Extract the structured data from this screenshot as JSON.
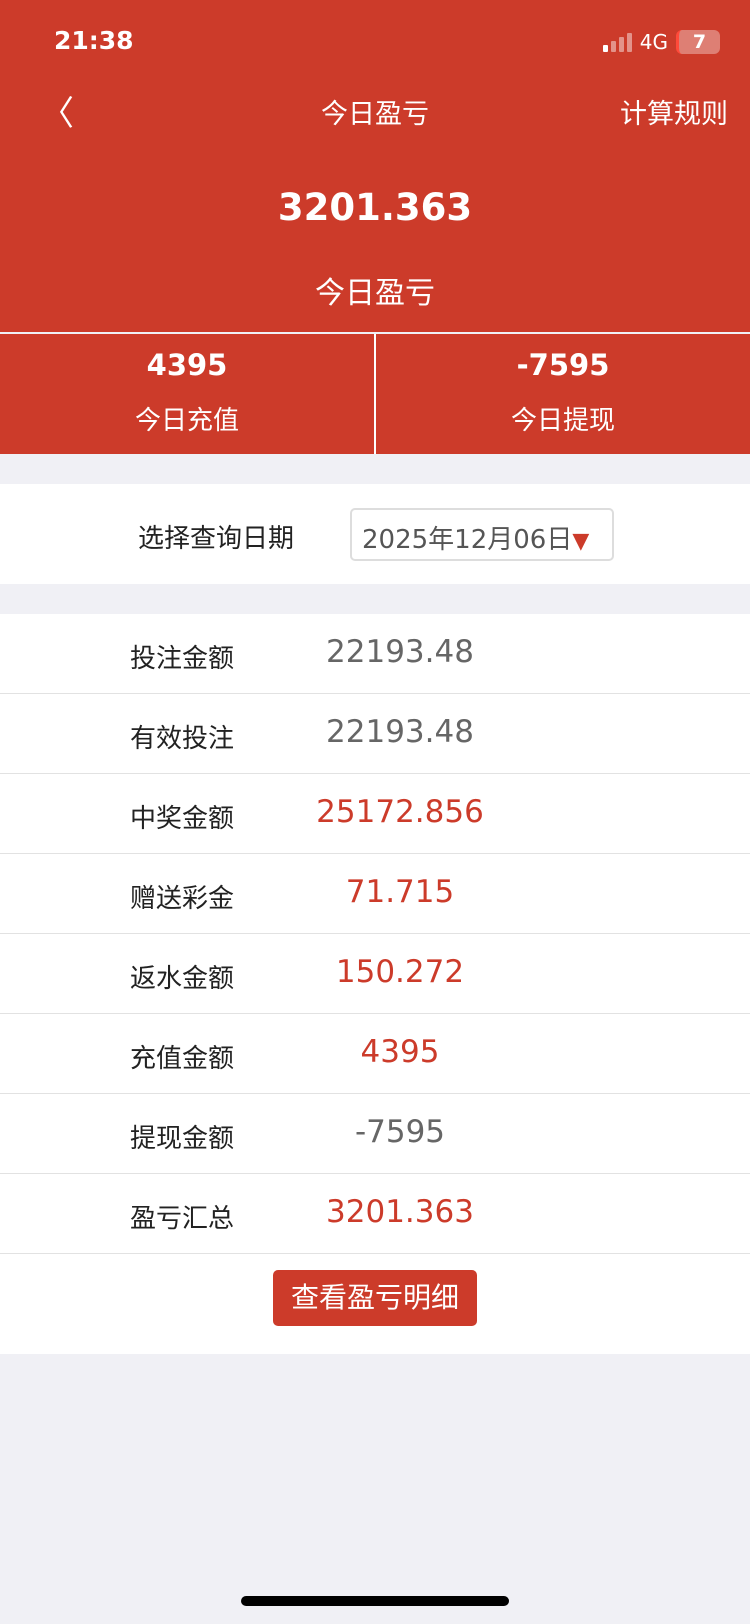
{
  "status_bar": {
    "time": "21:38",
    "network": "4G",
    "battery": "7"
  },
  "nav": {
    "back_icon": "chevron-left-icon",
    "title": "今日盈亏",
    "rules": "计算规则"
  },
  "summary": {
    "total": "3201.363",
    "total_label": "今日盈亏",
    "recharge": "4395",
    "recharge_label": "今日充值",
    "withdraw": "-7595",
    "withdraw_label": "今日提现"
  },
  "date": {
    "label": "选择查询日期",
    "value": "2025年12月06日"
  },
  "rows": [
    {
      "label": "投注金额",
      "value": "22193.48",
      "color": "gray"
    },
    {
      "label": "有效投注",
      "value": "22193.48",
      "color": "gray"
    },
    {
      "label": "中奖金额",
      "value": "25172.856",
      "color": "red"
    },
    {
      "label": "赠送彩金",
      "value": "71.715",
      "color": "red"
    },
    {
      "label": "返水金额",
      "value": "150.272",
      "color": "red"
    },
    {
      "label": "充值金额",
      "value": "4395",
      "color": "red"
    },
    {
      "label": "提现金额",
      "value": "-7595",
      "color": "gray"
    },
    {
      "label": "盈亏汇总",
      "value": "3201.363",
      "color": "red"
    }
  ],
  "detail_button": "查看盈亏明细",
  "colors": {
    "brand": "#cc3b2a"
  }
}
